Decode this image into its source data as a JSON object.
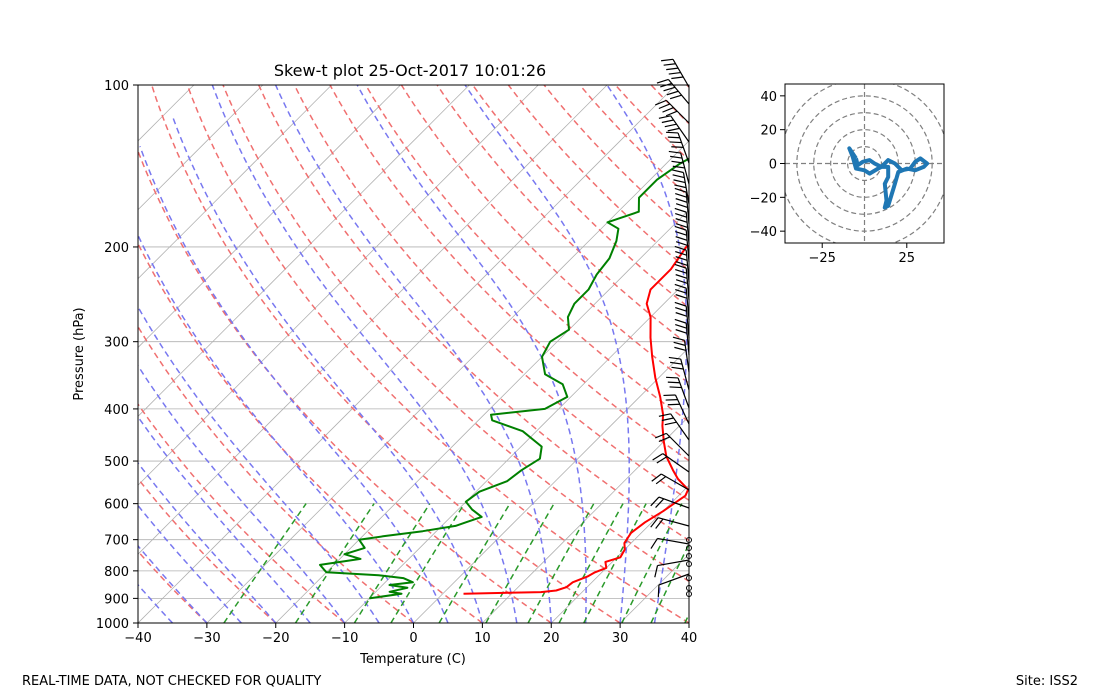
{
  "footer": {
    "left_text": "REAL-TIME DATA, NOT CHECKED FOR QUALITY",
    "right_text": "Site: ISS2"
  },
  "chart_data": [
    {
      "type": "line",
      "title": "Skew-t plot 25-Oct-2017 10:01:26",
      "xlabel": "Temperature (C)",
      "ylabel": "Pressure (hPa)",
      "xlim": [
        -40,
        40
      ],
      "ylim": [
        1000,
        100
      ],
      "y_scale": "log",
      "x_ticks": [
        -40,
        -30,
        -20,
        -10,
        0,
        10,
        20,
        30,
        40
      ],
      "y_ticks": [
        1000,
        900,
        800,
        700,
        600,
        500,
        400,
        300,
        200,
        100
      ],
      "grid": true,
      "series": [
        {
          "color": "#ff0000",
          "points": [
            [
              882,
              3
            ],
            [
              876,
              14
            ],
            [
              870,
              16
            ],
            [
              858,
              17
            ],
            [
              840,
              17.2
            ],
            [
              820,
              18.5
            ],
            [
              805,
              19
            ],
            [
              790,
              20
            ],
            [
              770,
              19
            ],
            [
              755,
              20.5
            ],
            [
              730,
              20
            ],
            [
              710,
              19
            ],
            [
              680,
              18.5
            ],
            [
              650,
              19
            ],
            [
              620,
              20
            ],
            [
              600,
              20.5
            ],
            [
              580,
              21
            ],
            [
              565,
              20.5
            ],
            [
              540,
              17.5
            ],
            [
              520,
              15.5
            ],
            [
              490,
              12.5
            ],
            [
              460,
              10
            ],
            [
              430,
              7.5
            ],
            [
              410,
              6
            ],
            [
              380,
              3
            ],
            [
              350,
              -0.5
            ],
            [
              320,
              -4
            ],
            [
              295,
              -7
            ],
            [
              270,
              -10
            ],
            [
              255,
              -12.5
            ],
            [
              240,
              -14
            ],
            [
              220,
              -14
            ],
            [
              200,
              -15
            ],
            [
              185,
              -13
            ],
            [
              170,
              -11
            ],
            [
              162,
              -9
            ],
            [
              150,
              -7.5
            ],
            [
              140,
              -6.5
            ],
            [
              125,
              -5.5
            ],
            [
              115,
              -5
            ],
            [
              105,
              -4
            ],
            [
              100,
              -3.5
            ]
          ]
        },
        {
          "color": "#008000",
          "points": [
            [
              900,
              -10
            ],
            [
              882,
              -6
            ],
            [
              875,
              -8
            ],
            [
              860,
              -6
            ],
            [
              850,
              -9
            ],
            [
              840,
              -6
            ],
            [
              825,
              -8
            ],
            [
              815,
              -12
            ],
            [
              805,
              -20
            ],
            [
              780,
              -22
            ],
            [
              760,
              -17
            ],
            [
              745,
              -20
            ],
            [
              725,
              -18
            ],
            [
              700,
              -20
            ],
            [
              690,
              -17
            ],
            [
              675,
              -12
            ],
            [
              660,
              -8
            ],
            [
              650,
              -7
            ],
            [
              635,
              -5.5
            ],
            [
              615,
              -8
            ],
            [
              595,
              -10
            ],
            [
              570,
              -9.5
            ],
            [
              545,
              -7
            ],
            [
              520,
              -6.5
            ],
            [
              495,
              -5.5
            ],
            [
              470,
              -7
            ],
            [
              440,
              -12
            ],
            [
              420,
              -18
            ],
            [
              410,
              -19
            ],
            [
              400,
              -12
            ],
            [
              380,
              -10.5
            ],
            [
              360,
              -13
            ],
            [
              345,
              -17
            ],
            [
              320,
              -20
            ],
            [
              300,
              -21
            ],
            [
              285,
              -20
            ],
            [
              270,
              -22
            ],
            [
              255,
              -23
            ],
            [
              240,
              -23
            ],
            [
              225,
              -24
            ],
            [
              210,
              -24.5
            ],
            [
              195,
              -26
            ],
            [
              185,
              -27.5
            ],
            [
              180,
              -30
            ],
            [
              172,
              -27
            ],
            [
              162,
              -29
            ],
            [
              150,
              -29
            ],
            [
              140,
              -28
            ],
            [
              130,
              -26
            ],
            [
              120,
              -22
            ],
            [
              110,
              -20
            ],
            [
              100,
              -17
            ]
          ]
        }
      ],
      "wind_barbs_shown": true
    },
    {
      "type": "line",
      "xlim": [
        -47,
        47
      ],
      "ylim": [
        -47,
        47
      ],
      "x_ticks": [
        -25,
        25
      ],
      "y_ticks": [
        40,
        20,
        0,
        -20,
        -40
      ],
      "grid": true,
      "rings": [
        10,
        20,
        30,
        40,
        50
      ],
      "series": [
        {
          "color": "#1f77b4",
          "points": [
            [
              -5,
              3
            ],
            [
              -9,
              9
            ],
            [
              -7,
              4
            ],
            [
              -5,
              -3
            ],
            [
              0,
              -4
            ],
            [
              3,
              -6
            ],
            [
              8,
              -3
            ],
            [
              10,
              -2
            ],
            [
              14,
              -2
            ],
            [
              14,
              -8
            ],
            [
              12,
              -12
            ],
            [
              13,
              -22
            ],
            [
              12,
              -26
            ],
            [
              14,
              -25
            ],
            [
              18,
              -12
            ],
            [
              20,
              -5
            ],
            [
              25,
              -3
            ],
            [
              30,
              -4
            ],
            [
              35,
              -2
            ],
            [
              37,
              0
            ],
            [
              33,
              3
            ],
            [
              30,
              1
            ],
            [
              27,
              -3
            ],
            [
              22,
              -4
            ],
            [
              18,
              0
            ],
            [
              14,
              2
            ],
            [
              10,
              -2
            ],
            [
              6,
              0
            ],
            [
              3,
              2
            ],
            [
              -1,
              1
            ],
            [
              -4,
              -1
            ],
            [
              -5,
              3
            ]
          ]
        }
      ]
    }
  ]
}
